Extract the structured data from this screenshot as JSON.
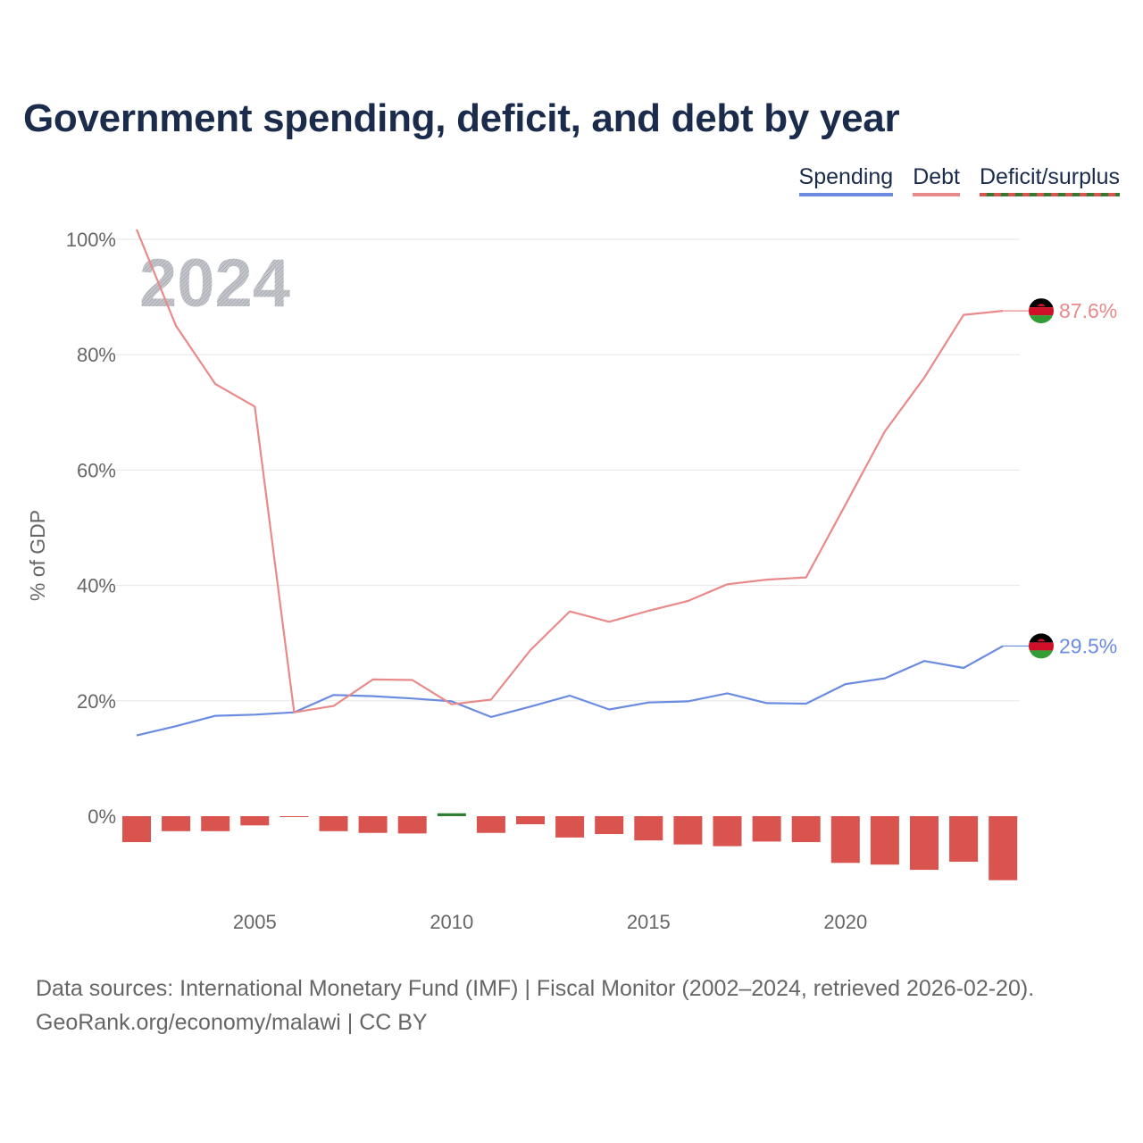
{
  "chart_data": {
    "type": "line",
    "title": "Government spending, deficit, and debt by year",
    "ylabel": "% of GDP",
    "xlabel": "",
    "ylim": [
      -15,
      102
    ],
    "xlim": [
      2001.3,
      2025.0
    ],
    "y_ticks": [
      0,
      20,
      40,
      60,
      80,
      100
    ],
    "y_tick_labels": [
      "0%",
      "20%",
      "40%",
      "60%",
      "80%",
      "100%"
    ],
    "x_ticks": [
      2005,
      2010,
      2015,
      2020
    ],
    "x_tick_labels": [
      "2005",
      "2010",
      "2015",
      "2020"
    ],
    "year_watermark": "2024",
    "legend": [
      {
        "name": "Spending",
        "color": "#6a8be0"
      },
      {
        "name": "Debt",
        "color": "#e98a8a"
      },
      {
        "name": "Deficit/surplus",
        "color": "#d9534f",
        "alt_color": "#2e7d32"
      }
    ],
    "years": [
      2002,
      2003,
      2004,
      2005,
      2006,
      2007,
      2008,
      2009,
      2010,
      2011,
      2012,
      2013,
      2014,
      2015,
      2016,
      2017,
      2018,
      2019,
      2020,
      2021,
      2022,
      2023,
      2024
    ],
    "series": [
      {
        "name": "Spending",
        "color": "#6a8be0",
        "values": [
          14.0,
          15.6,
          17.4,
          17.6,
          18.0,
          21.0,
          20.8,
          20.4,
          19.9,
          17.2,
          19.0,
          20.9,
          18.5,
          19.7,
          19.9,
          21.3,
          19.6,
          19.5,
          22.9,
          23.9,
          26.9,
          25.7,
          29.5
        ],
        "end_label": "29.5%"
      },
      {
        "name": "Debt",
        "color": "#e98a8a",
        "values": [
          101.7,
          85.0,
          74.9,
          71.0,
          18.0,
          19.1,
          23.7,
          23.6,
          19.4,
          20.2,
          28.8,
          35.5,
          33.7,
          35.6,
          37.3,
          40.2,
          41.0,
          41.4,
          54.0,
          66.7,
          76.0,
          86.9,
          87.6
        ],
        "end_label": "87.6%"
      },
      {
        "name": "Deficit/surplus",
        "type": "bar",
        "positive_color": "#2e7d32",
        "negative_color": "#d9534f",
        "values": [
          -4.5,
          -2.6,
          -2.6,
          -1.6,
          -0.1,
          -2.6,
          -2.9,
          -3.0,
          0.5,
          -2.9,
          -1.4,
          -3.7,
          -3.1,
          -4.2,
          -4.9,
          -5.2,
          -4.4,
          -4.5,
          -8.1,
          -8.4,
          -9.3,
          -7.9,
          -11.1
        ]
      }
    ]
  },
  "footer": {
    "line1": "Data sources: International Monetary Fund (IMF) | Fiscal Monitor (2002–2024, retrieved 2026-02-20).",
    "line2": "GeoRank.org/economy/malawi | CC BY"
  }
}
